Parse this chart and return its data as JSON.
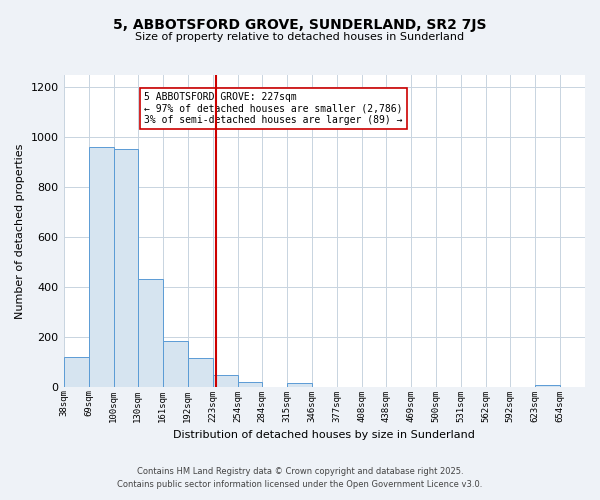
{
  "title": "5, ABBOTSFORD GROVE, SUNDERLAND, SR2 7JS",
  "subtitle": "Size of property relative to detached houses in Sunderland",
  "xlabel": "Distribution of detached houses by size in Sunderland",
  "ylabel": "Number of detached properties",
  "bar_color": "#d6e4f0",
  "bar_edge_color": "#5b9bd5",
  "bin_labels": [
    "38sqm",
    "69sqm",
    "100sqm",
    "130sqm",
    "161sqm",
    "192sqm",
    "223sqm",
    "254sqm",
    "284sqm",
    "315sqm",
    "346sqm",
    "377sqm",
    "408sqm",
    "438sqm",
    "469sqm",
    "500sqm",
    "531sqm",
    "562sqm",
    "592sqm",
    "623sqm",
    "654sqm"
  ],
  "bin_edges": [
    38,
    69,
    100,
    130,
    161,
    192,
    223,
    254,
    284,
    315,
    346,
    377,
    408,
    438,
    469,
    500,
    531,
    562,
    592,
    623,
    654
  ],
  "bar_heights": [
    120,
    960,
    955,
    430,
    185,
    115,
    45,
    20,
    0,
    15,
    0,
    0,
    0,
    0,
    0,
    0,
    0,
    0,
    0,
    5
  ],
  "vline_x": 227,
  "vline_color": "#cc0000",
  "annotation_line1": "5 ABBOTSFORD GROVE: 227sqm",
  "annotation_line2": "← 97% of detached houses are smaller (2,786)",
  "annotation_line3": "3% of semi-detached houses are larger (89) →",
  "annotation_box_color": "#ffffff",
  "annotation_box_edge": "#cc0000",
  "ylim": [
    0,
    1250
  ],
  "yticks": [
    0,
    200,
    400,
    600,
    800,
    1000,
    1200
  ],
  "footnote1": "Contains HM Land Registry data © Crown copyright and database right 2025.",
  "footnote2": "Contains public sector information licensed under the Open Government Licence v3.0.",
  "bg_color": "#eef2f7",
  "plot_bg_color": "#ffffff",
  "grid_color": "#c8d4e0"
}
